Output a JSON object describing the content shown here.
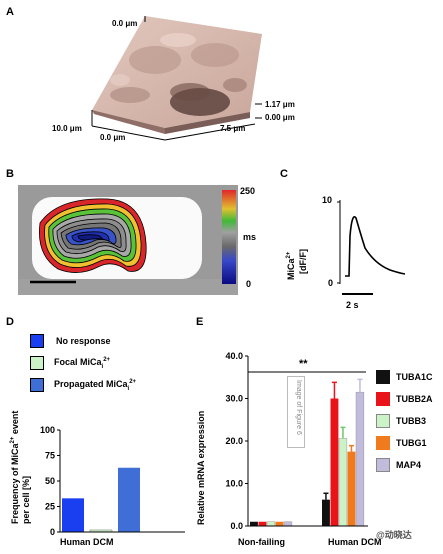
{
  "panel_labels": [
    "A",
    "B",
    "C",
    "D",
    "E"
  ],
  "panelA": {
    "labels": {
      "y_top": "0.0 μm",
      "x_left": "10.0 μm",
      "x_origin": "0.0 μm",
      "x_right": "7.5 μm",
      "z_top": "1.17 μm",
      "z_bottom": "0.00 μm"
    }
  },
  "panelB": {
    "colorbar": {
      "max": "250",
      "unit": "ms",
      "min": "0"
    }
  },
  "panelC": {
    "ylabel_line1": "MiCa",
    "ylabel_sup": "2+",
    "ylabel_line2": "[dF/F]",
    "y_top": "10",
    "y_bottom": "0",
    "scalebar": "2 s"
  },
  "panelD": {
    "legend": [
      {
        "label": "No response",
        "color": "#1a3ff0"
      },
      {
        "label": "Focal MiCa",
        "sub": "i",
        "sup": "2+",
        "color": "#ccf2c8"
      },
      {
        "label": "Propagated MiCa",
        "sub": "i",
        "sup": "2+",
        "color": "#3f6fd6"
      }
    ],
    "ylabel": "Frequency of MiCa",
    "ylabel_sup": "2+",
    "ylabel_rest": " event",
    "ylabel_line2": "per cell  [%]",
    "xlabel": "Human DCM"
  },
  "panelE": {
    "ylabel": "Relative mRNA expression",
    "significance": "**",
    "watermark": "Image of Figure 6",
    "credit": "@动晓达",
    "legend": [
      {
        "label": "TUBA1C",
        "color": "#111111"
      },
      {
        "label": "TUBB2A",
        "color": "#e8141a"
      },
      {
        "label": "TUBB3",
        "color": "#ccf2c8"
      },
      {
        "label": "TUBG1",
        "color": "#f07a1e"
      },
      {
        "label": "MAP4",
        "color": "#c2bcdc"
      }
    ]
  },
  "chart_data": [
    {
      "type": "bar",
      "panel": "D",
      "categories": [
        "Human DCM"
      ],
      "series": [
        {
          "name": "No response",
          "values": [
            33
          ]
        },
        {
          "name": "Focal MiCa",
          "values": [
            2
          ]
        },
        {
          "name": "Propagated MiCa",
          "values": [
            63
          ]
        }
      ],
      "ylim": [
        0,
        100
      ],
      "yticks": [
        "0",
        "25",
        "50",
        "75",
        "100"
      ]
    },
    {
      "type": "bar",
      "panel": "E",
      "categories": [
        "Non-failing",
        "Human DCM"
      ],
      "series": [
        {
          "name": "TUBA1C",
          "values": [
            1.0,
            6.2
          ],
          "errors": [
            0.1,
            1.5
          ]
        },
        {
          "name": "TUBB2A",
          "values": [
            1.0,
            30.0
          ],
          "errors": [
            0.1,
            3.8
          ]
        },
        {
          "name": "TUBB3",
          "values": [
            1.0,
            20.6
          ],
          "errors": [
            0.1,
            2.6
          ]
        },
        {
          "name": "TUBG1",
          "values": [
            1.0,
            17.5
          ],
          "errors": [
            0.1,
            1.4
          ]
        },
        {
          "name": "MAP4",
          "values": [
            1.0,
            31.5
          ],
          "errors": [
            0.1,
            3.0
          ]
        }
      ],
      "ylim": [
        0,
        40
      ],
      "yticks": [
        "0.0",
        "10.0",
        "20.0",
        "30.0",
        "40.0"
      ]
    }
  ]
}
